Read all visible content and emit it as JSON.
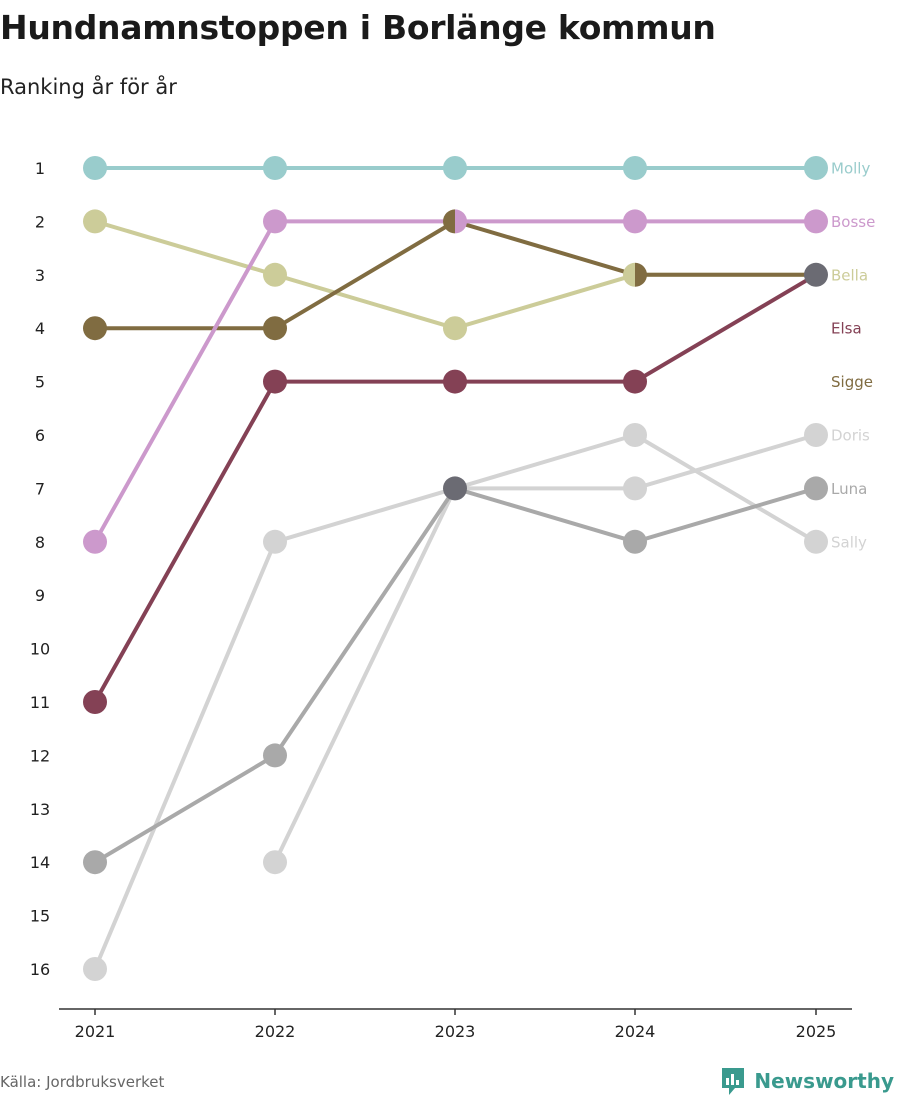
{
  "title": "Hundnamnstoppen i Borlänge kommun",
  "subtitle": "Ranking år för år",
  "source": "Källa: Jordbruksverket",
  "brand": {
    "name": "Newsworthy",
    "color": "#3a9a8e"
  },
  "chart_data": {
    "type": "line",
    "title": "Hundnamnstoppen i Borlänge kommun",
    "subtitle": "Ranking år för år",
    "x": [
      "2021",
      "2022",
      "2023",
      "2024",
      "2025"
    ],
    "yrange": [
      1,
      16
    ],
    "ytick_labels": [
      "1",
      "2",
      "3",
      "4",
      "5",
      "6",
      "7",
      "8",
      "9",
      "10",
      "11",
      "12",
      "13",
      "14",
      "15",
      "16"
    ],
    "xlabel": "",
    "ylabel": "",
    "grid": false,
    "legend": "right-end labels",
    "series": [
      {
        "name": "Doris",
        "color": "#d3d3d3",
        "values": [
          16,
          8,
          7,
          7,
          6
        ]
      },
      {
        "name": "Sally",
        "color": "#d3d3d3",
        "values": [
          null,
          14,
          7,
          6,
          8
        ]
      },
      {
        "name": "Luna",
        "color": "#a9a9a9",
        "values": [
          14,
          12,
          7,
          8,
          7
        ]
      },
      {
        "name": "Molly",
        "color": "#99cccc",
        "values": [
          1,
          1,
          1,
          1,
          1
        ]
      },
      {
        "name": "Bella",
        "color": "#cccc99",
        "values": [
          2,
          3,
          4,
          3,
          3
        ]
      },
      {
        "name": "Elsa",
        "color": "#844155",
        "values": [
          11,
          5,
          5,
          5,
          3
        ]
      },
      {
        "name": "Sigge",
        "color": "#806c41",
        "values": [
          4,
          4,
          2,
          3,
          3
        ]
      },
      {
        "name": "Bosse",
        "color": "#cc99cc",
        "values": [
          8,
          2,
          2,
          2,
          2
        ]
      }
    ],
    "shared_marker_color": "#6b6b73"
  }
}
